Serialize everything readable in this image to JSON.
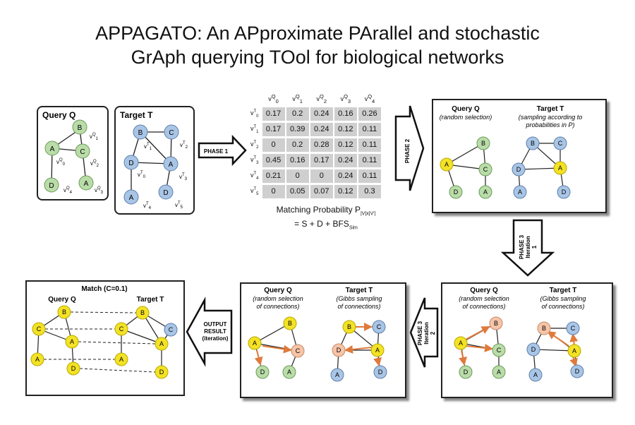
{
  "title": {
    "line1": "APPAGATO: An APproximate PArallel and stochastic",
    "line2": "GrAph querying TOol for biological networks"
  },
  "query_label": "Query Q",
  "target_label": "Target T",
  "phase1_label": "PHASE 1",
  "phase2_label": "PHASE 2",
  "phase3_iter1_label": [
    "PHASE 3",
    "Iteration",
    "1"
  ],
  "phase3_iter2_label": [
    "PHASE 3",
    "Iteration",
    "2"
  ],
  "output_label": [
    "OUTPUT",
    "RESULT",
    "(iteration)"
  ],
  "match_title": "Match (C=0.1)",
  "phase2_query_note": "(random selection)",
  "phase2_target_note": [
    "(sampling according to",
    "probabilities in P)"
  ],
  "phase3_query_note": [
    "(random selection",
    "of connections)"
  ],
  "phase3_target_note": [
    "(Gibbs sampling",
    "of connections)"
  ],
  "matrix": {
    "col_headers": [
      "vQ0",
      "vQ1",
      "vQ2",
      "vQ3",
      "vQ4"
    ],
    "row_headers": [
      "vT0",
      "vT1",
      "vT2",
      "vT3",
      "vT4",
      "vT5"
    ],
    "rows": [
      [
        "0.17",
        "0.2",
        "0.24",
        "0.16",
        "0.26"
      ],
      [
        "0.17",
        "0.39",
        "0.24",
        "0.12",
        "0.11"
      ],
      [
        "0",
        "0.2",
        "0.28",
        "0.12",
        "0.11"
      ],
      [
        "0.45",
        "0.16",
        "0.17",
        "0.24",
        "0.11"
      ],
      [
        "0.21",
        "0",
        "0",
        "0.24",
        "0.11"
      ],
      [
        "0",
        "0.05",
        "0.07",
        "0.12",
        "0.3"
      ]
    ],
    "caption_line1": "Matching Probability P",
    "caption_sub": "|V|x|V'|",
    "caption_line2": "= S + D + BFS",
    "caption_sub2": "Sim"
  },
  "node_letters": {
    "A": "A",
    "B": "B",
    "C": "C",
    "D": "D"
  },
  "vertex_labels": {
    "q0": "v",
    "t0": "v"
  },
  "colors": {
    "query_node": "#b9dca8",
    "target_node": "#a9c5e6",
    "selected_node": "#f3e225",
    "sampled_node": "#f6c4a7",
    "orange_arrow": "#e07a3c"
  }
}
